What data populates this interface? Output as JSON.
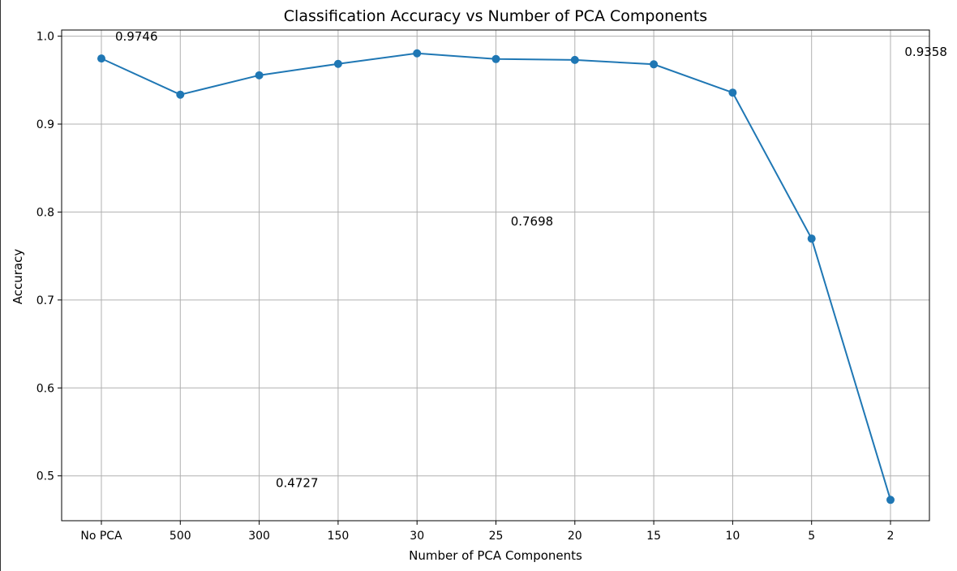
{
  "chart_data": {
    "type": "line",
    "title": "Classification Accuracy vs Number of PCA Components",
    "xlabel": "Number of PCA Components",
    "ylabel": "Accuracy",
    "categories": [
      "No PCA",
      "500",
      "300",
      "150",
      "30",
      "25",
      "20",
      "15",
      "10",
      "5",
      "2"
    ],
    "series": [
      {
        "name": "",
        "values": [
          0.9746,
          0.9335,
          0.9555,
          0.9685,
          0.9805,
          0.974,
          0.973,
          0.968,
          0.9358,
          0.7698,
          0.4727
        ],
        "color": "#1f77b4",
        "marker": "circle"
      }
    ],
    "ylim": [
      0.449,
      1.007
    ],
    "yticks": [
      0.5,
      0.6,
      0.7,
      0.8,
      0.9,
      1.0
    ],
    "ytick_labels": [
      "0.5",
      "0.6",
      "0.7",
      "0.8",
      "0.9",
      "1.0"
    ],
    "grid": true,
    "legend": "none",
    "annotations": [
      {
        "text": "0.9746",
        "category": "No PCA",
        "value": 0.9746
      },
      {
        "text": "0.9358",
        "category": "10",
        "value": 0.9358
      },
      {
        "text": "0.7698",
        "category": "5",
        "value": 0.7698
      },
      {
        "text": "0.4727",
        "category": "2",
        "value": 0.4727
      }
    ]
  },
  "colors": {
    "line": "#1f77b4",
    "grid": "#b0b0b0",
    "axes": "#000000"
  }
}
